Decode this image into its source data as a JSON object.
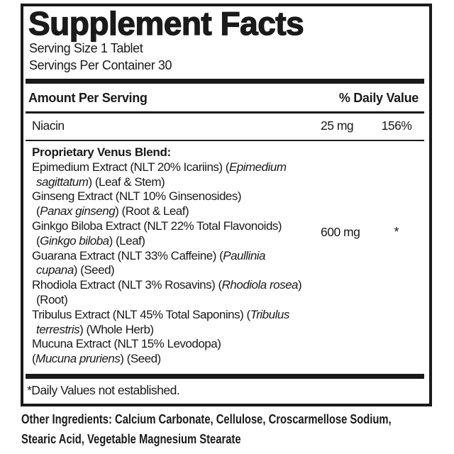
{
  "label": {
    "title": "Supplement Facts",
    "serving_size": "Serving Size 1 Tablet",
    "servings_per_container": "Servings Per Container 30",
    "header": {
      "amount_per_serving": "Amount Per Serving",
      "daily_value": "% Daily Value"
    },
    "rows": [
      {
        "name": "Niacin",
        "amount": "25 mg",
        "dv": "156%"
      }
    ],
    "blend": {
      "amount": "600 mg",
      "dv": "*",
      "lines": [
        {
          "bold": true,
          "indent": false,
          "segments": [
            {
              "text": "Proprietary Venus Blend:",
              "italic": false
            }
          ]
        },
        {
          "bold": false,
          "indent": false,
          "segments": [
            {
              "text": "Epimedium Extract (NLT 20% Icariins) (",
              "italic": false
            },
            {
              "text": "Epimedium",
              "italic": true
            }
          ]
        },
        {
          "bold": false,
          "indent": true,
          "segments": [
            {
              "text": "sagittatum",
              "italic": true
            },
            {
              "text": ") (Leaf & Stem)",
              "italic": false
            }
          ]
        },
        {
          "bold": false,
          "indent": false,
          "segments": [
            {
              "text": "Ginseng Extract (NLT 10% Ginsenosides)",
              "italic": false
            }
          ]
        },
        {
          "bold": false,
          "indent": true,
          "segments": [
            {
              "text": "(",
              "italic": false
            },
            {
              "text": "Panax ginseng",
              "italic": true
            },
            {
              "text": ") (Root & Leaf)",
              "italic": false
            }
          ]
        },
        {
          "bold": false,
          "indent": false,
          "segments": [
            {
              "text": "Ginkgo Biloba Extract (NLT 22% Total Flavonoids)",
              "italic": false
            }
          ]
        },
        {
          "bold": false,
          "indent": true,
          "segments": [
            {
              "text": "(",
              "italic": false
            },
            {
              "text": "Ginkgo biloba",
              "italic": true
            },
            {
              "text": ") (Leaf)",
              "italic": false
            }
          ]
        },
        {
          "bold": false,
          "indent": false,
          "segments": [
            {
              "text": "Guarana Extract (NLT 33% Caffeine) (",
              "italic": false
            },
            {
              "text": "Paullinia",
              "italic": true
            }
          ]
        },
        {
          "bold": false,
          "indent": true,
          "segments": [
            {
              "text": "cupana",
              "italic": true
            },
            {
              "text": ") (Seed)",
              "italic": false
            }
          ]
        },
        {
          "bold": false,
          "indent": false,
          "segments": [
            {
              "text": "Rhodiola Extract (NLT 3% Rosavins) (",
              "italic": false
            },
            {
              "text": "Rhodiola rosea",
              "italic": true
            },
            {
              "text": ")",
              "italic": false
            }
          ]
        },
        {
          "bold": false,
          "indent": true,
          "segments": [
            {
              "text": "(Root)",
              "italic": false
            }
          ]
        },
        {
          "bold": false,
          "indent": false,
          "segments": [
            {
              "text": "Tribulus Extract (NLT 45% Total Saponins) (",
              "italic": false
            },
            {
              "text": "Tribulus",
              "italic": true
            }
          ]
        },
        {
          "bold": false,
          "indent": true,
          "segments": [
            {
              "text": "terrestris",
              "italic": true
            },
            {
              "text": ") (Whole Herb)",
              "italic": false
            }
          ]
        },
        {
          "bold": false,
          "indent": false,
          "segments": [
            {
              "text": "Mucuna Extract (NLT 15% Levodopa)",
              "italic": false
            }
          ]
        },
        {
          "bold": false,
          "indent": false,
          "segments": [
            {
              "text": "(",
              "italic": false
            },
            {
              "text": "Mucuna pruriens",
              "italic": true
            },
            {
              "text": ") (Seed)",
              "italic": false
            }
          ]
        }
      ]
    },
    "footnote": "*Daily Values not established.",
    "colors": {
      "ink": "#1a1a1a",
      "background": "#ffffff"
    }
  },
  "other_ingredients": {
    "lines": [
      "Other Ingredients: Calcium Carbonate, Cellulose, Croscarmellose Sodium,",
      "Stearic Acid, Vegetable Magnesium Stearate"
    ]
  }
}
